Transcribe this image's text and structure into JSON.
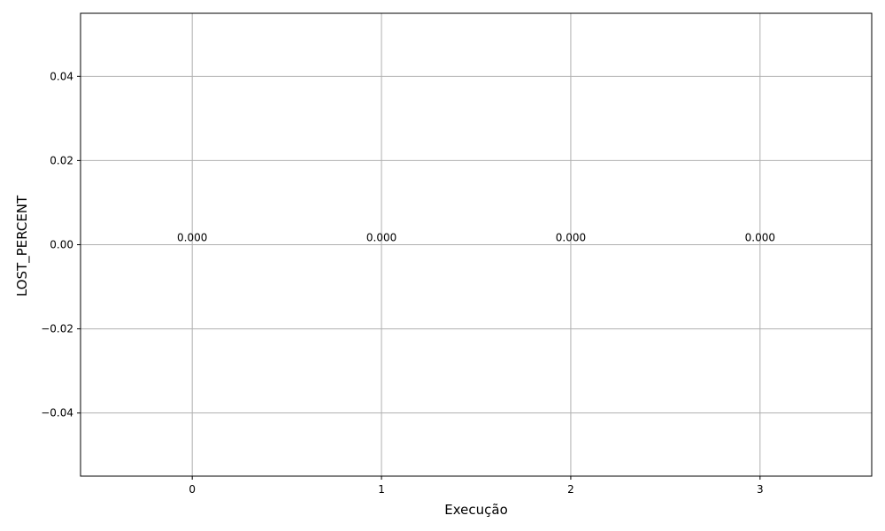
{
  "chart_data": {
    "type": "bar",
    "categories": [
      "0",
      "1",
      "2",
      "3"
    ],
    "values": [
      0.0,
      0.0,
      0.0,
      0.0
    ],
    "data_labels": [
      "0.000",
      "0.000",
      "0.000",
      "0.000"
    ],
    "xlabel": "Execução",
    "ylabel": "LOST_PERCENT",
    "xlim": [
      -0.59,
      3.59
    ],
    "ylim": [
      -0.055,
      0.055
    ],
    "yticks": [
      -0.04,
      -0.02,
      0.0,
      0.02,
      0.04
    ],
    "ytick_labels": [
      "−0.04",
      "−0.02",
      "0.00",
      "0.02",
      "0.04"
    ],
    "grid": true,
    "colors": {
      "grid": "#b0b0b0",
      "axes": "#000000",
      "bar": "#1f77b4"
    }
  }
}
